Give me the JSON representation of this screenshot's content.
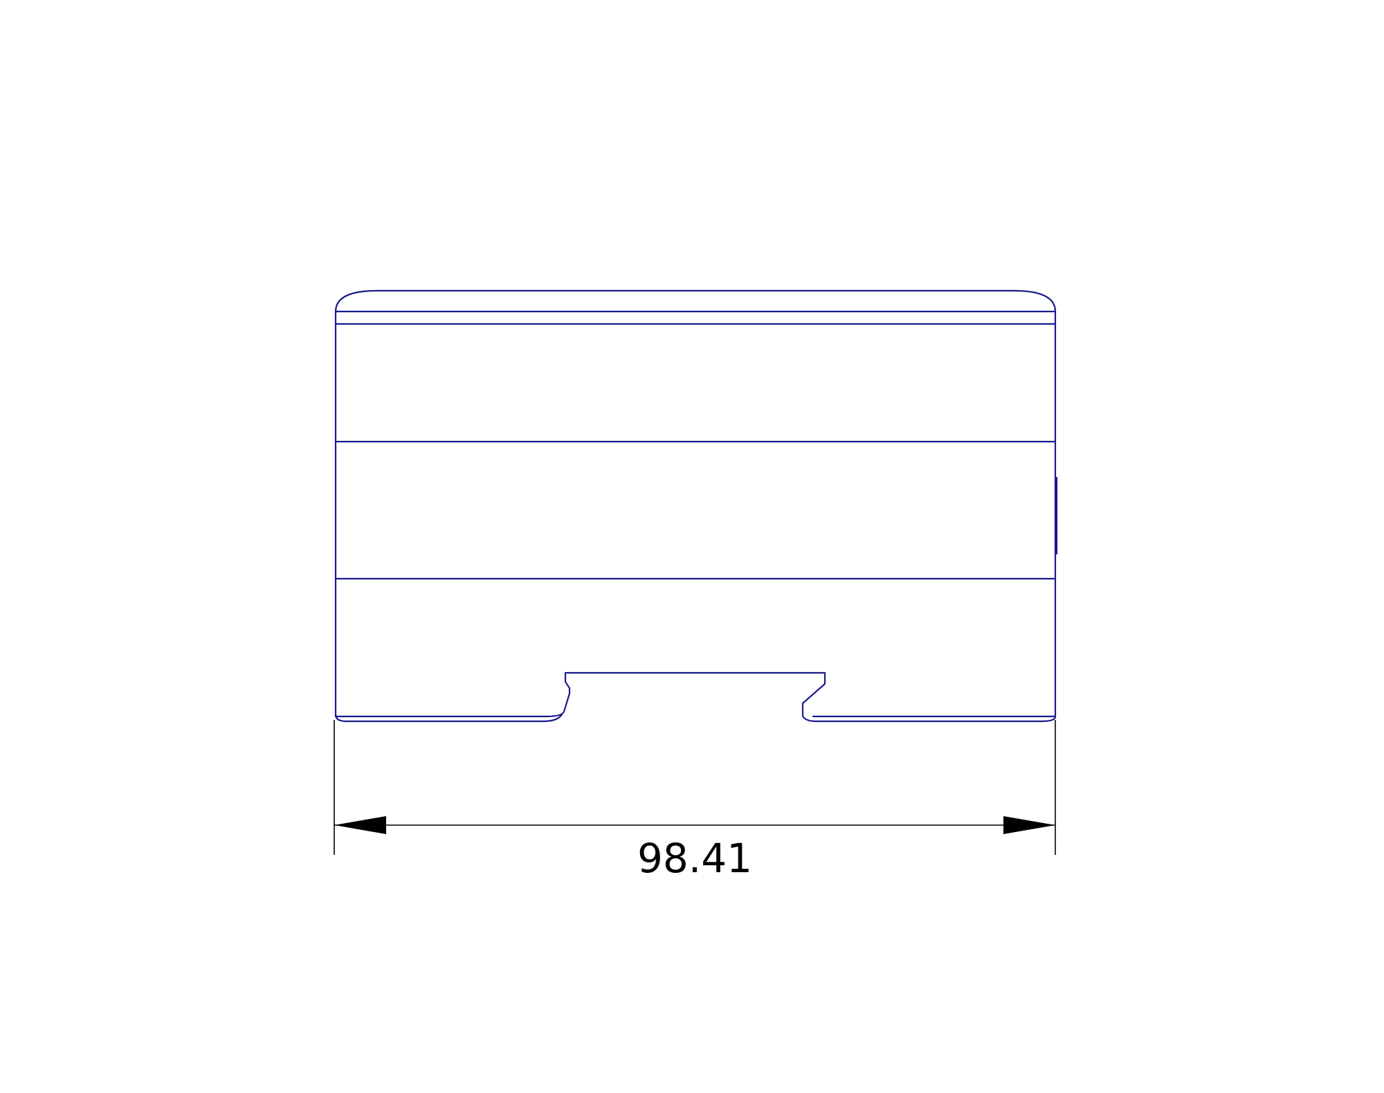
{
  "drawing": {
    "line_color": "#1a1a8c",
    "dimension_color": "#000000",
    "background": "#ffffff"
  },
  "dimension": {
    "width_label": "98.41"
  }
}
